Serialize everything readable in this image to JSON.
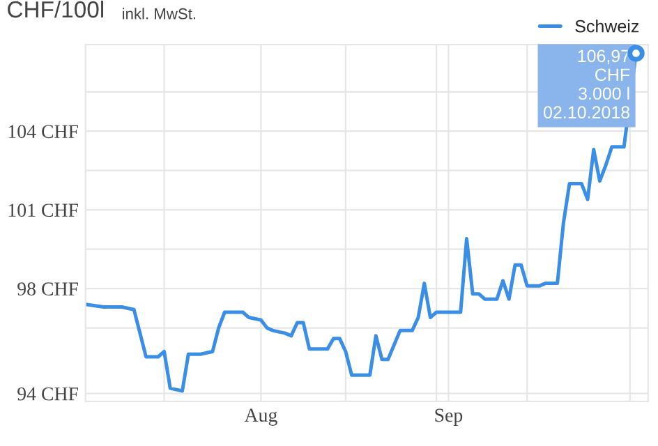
{
  "chart_data": {
    "type": "line",
    "title": "CHF/100l",
    "subtitle": "inkl. MwSt.",
    "x": [
      "2018-07-03",
      "2018-07-06",
      "2018-07-09",
      "2018-07-11",
      "2018-07-13",
      "2018-07-15",
      "2018-07-16",
      "2018-07-17",
      "2018-07-19",
      "2018-07-20",
      "2018-07-22",
      "2018-07-24",
      "2018-07-25",
      "2018-07-26",
      "2018-07-29",
      "2018-07-30",
      "2018-08-01",
      "2018-08-02",
      "2018-08-03",
      "2018-08-05",
      "2018-08-06",
      "2018-08-07",
      "2018-08-08",
      "2018-08-09",
      "2018-08-12",
      "2018-08-13",
      "2018-08-14",
      "2018-08-15",
      "2018-08-16",
      "2018-08-19",
      "2018-08-20",
      "2018-08-21",
      "2018-08-22",
      "2018-08-24",
      "2018-08-26",
      "2018-08-27",
      "2018-08-28",
      "2018-08-29",
      "2018-08-30",
      "2018-09-03",
      "2018-09-04",
      "2018-09-05",
      "2018-09-06",
      "2018-09-07",
      "2018-09-09",
      "2018-09-10",
      "2018-09-11",
      "2018-09-12",
      "2018-09-13",
      "2018-09-14",
      "2018-09-16",
      "2018-09-17",
      "2018-09-18",
      "2018-09-19",
      "2018-09-20",
      "2018-09-21",
      "2018-09-23",
      "2018-09-24",
      "2018-09-25",
      "2018-09-26",
      "2018-09-27",
      "2018-09-28",
      "2018-09-30",
      "2018-10-02"
    ],
    "series": [
      {
        "name": "Schweiz",
        "color": "#3a8ee6",
        "values": [
          97.4,
          97.3,
          97.3,
          97.2,
          95.4,
          95.4,
          95.6,
          94.2,
          94.1,
          95.5,
          95.5,
          95.6,
          96.5,
          97.1,
          97.1,
          96.9,
          96.8,
          96.5,
          96.4,
          96.3,
          96.2,
          96.7,
          96.7,
          95.7,
          95.7,
          96.1,
          96.1,
          95.6,
          94.7,
          94.7,
          96.2,
          95.3,
          95.3,
          96.4,
          96.4,
          96.9,
          98.2,
          96.9,
          97.1,
          97.1,
          99.9,
          97.8,
          97.8,
          97.6,
          97.6,
          98.3,
          97.6,
          98.9,
          98.9,
          98.1,
          98.1,
          98.2,
          98.2,
          98.2,
          100.5,
          102.0,
          102.0,
          101.4,
          103.3,
          102.1,
          102.7,
          103.4,
          103.4,
          106.97
        ]
      }
    ],
    "xlim": [
      "2018-07-03",
      "2018-10-04"
    ],
    "xticks": [
      {
        "value": "2018-07-16",
        "label": null
      },
      {
        "value": "2018-08-01",
        "label": "Aug"
      },
      {
        "value": "2018-08-15",
        "label": null
      },
      {
        "value": "2018-08-30",
        "label": null
      },
      {
        "value": "2018-09-01",
        "label": "Sep"
      },
      {
        "value": "2018-09-14",
        "label": null
      },
      {
        "value": "2018-10-01",
        "label": null
      }
    ],
    "ylim": [
      93.7,
      107.3
    ],
    "yticks": [
      {
        "value": 94,
        "label": "94 CHF"
      },
      {
        "value": 96.5,
        "label": null
      },
      {
        "value": 98,
        "label": "98 CHF"
      },
      {
        "value": 99.5,
        "label": null
      },
      {
        "value": 101,
        "label": "101 CHF"
      },
      {
        "value": 102.5,
        "label": null
      },
      {
        "value": 104,
        "label": "104 CHF"
      },
      {
        "value": 105.5,
        "label": null
      }
    ],
    "annotations": [
      {
        "text": "106,97\nCHF\n3.000 l\n02.10.2018",
        "x": "2018-10-02",
        "y": 106.97
      }
    ],
    "grid": true,
    "legend": "top right",
    "line_style": "solid"
  }
}
